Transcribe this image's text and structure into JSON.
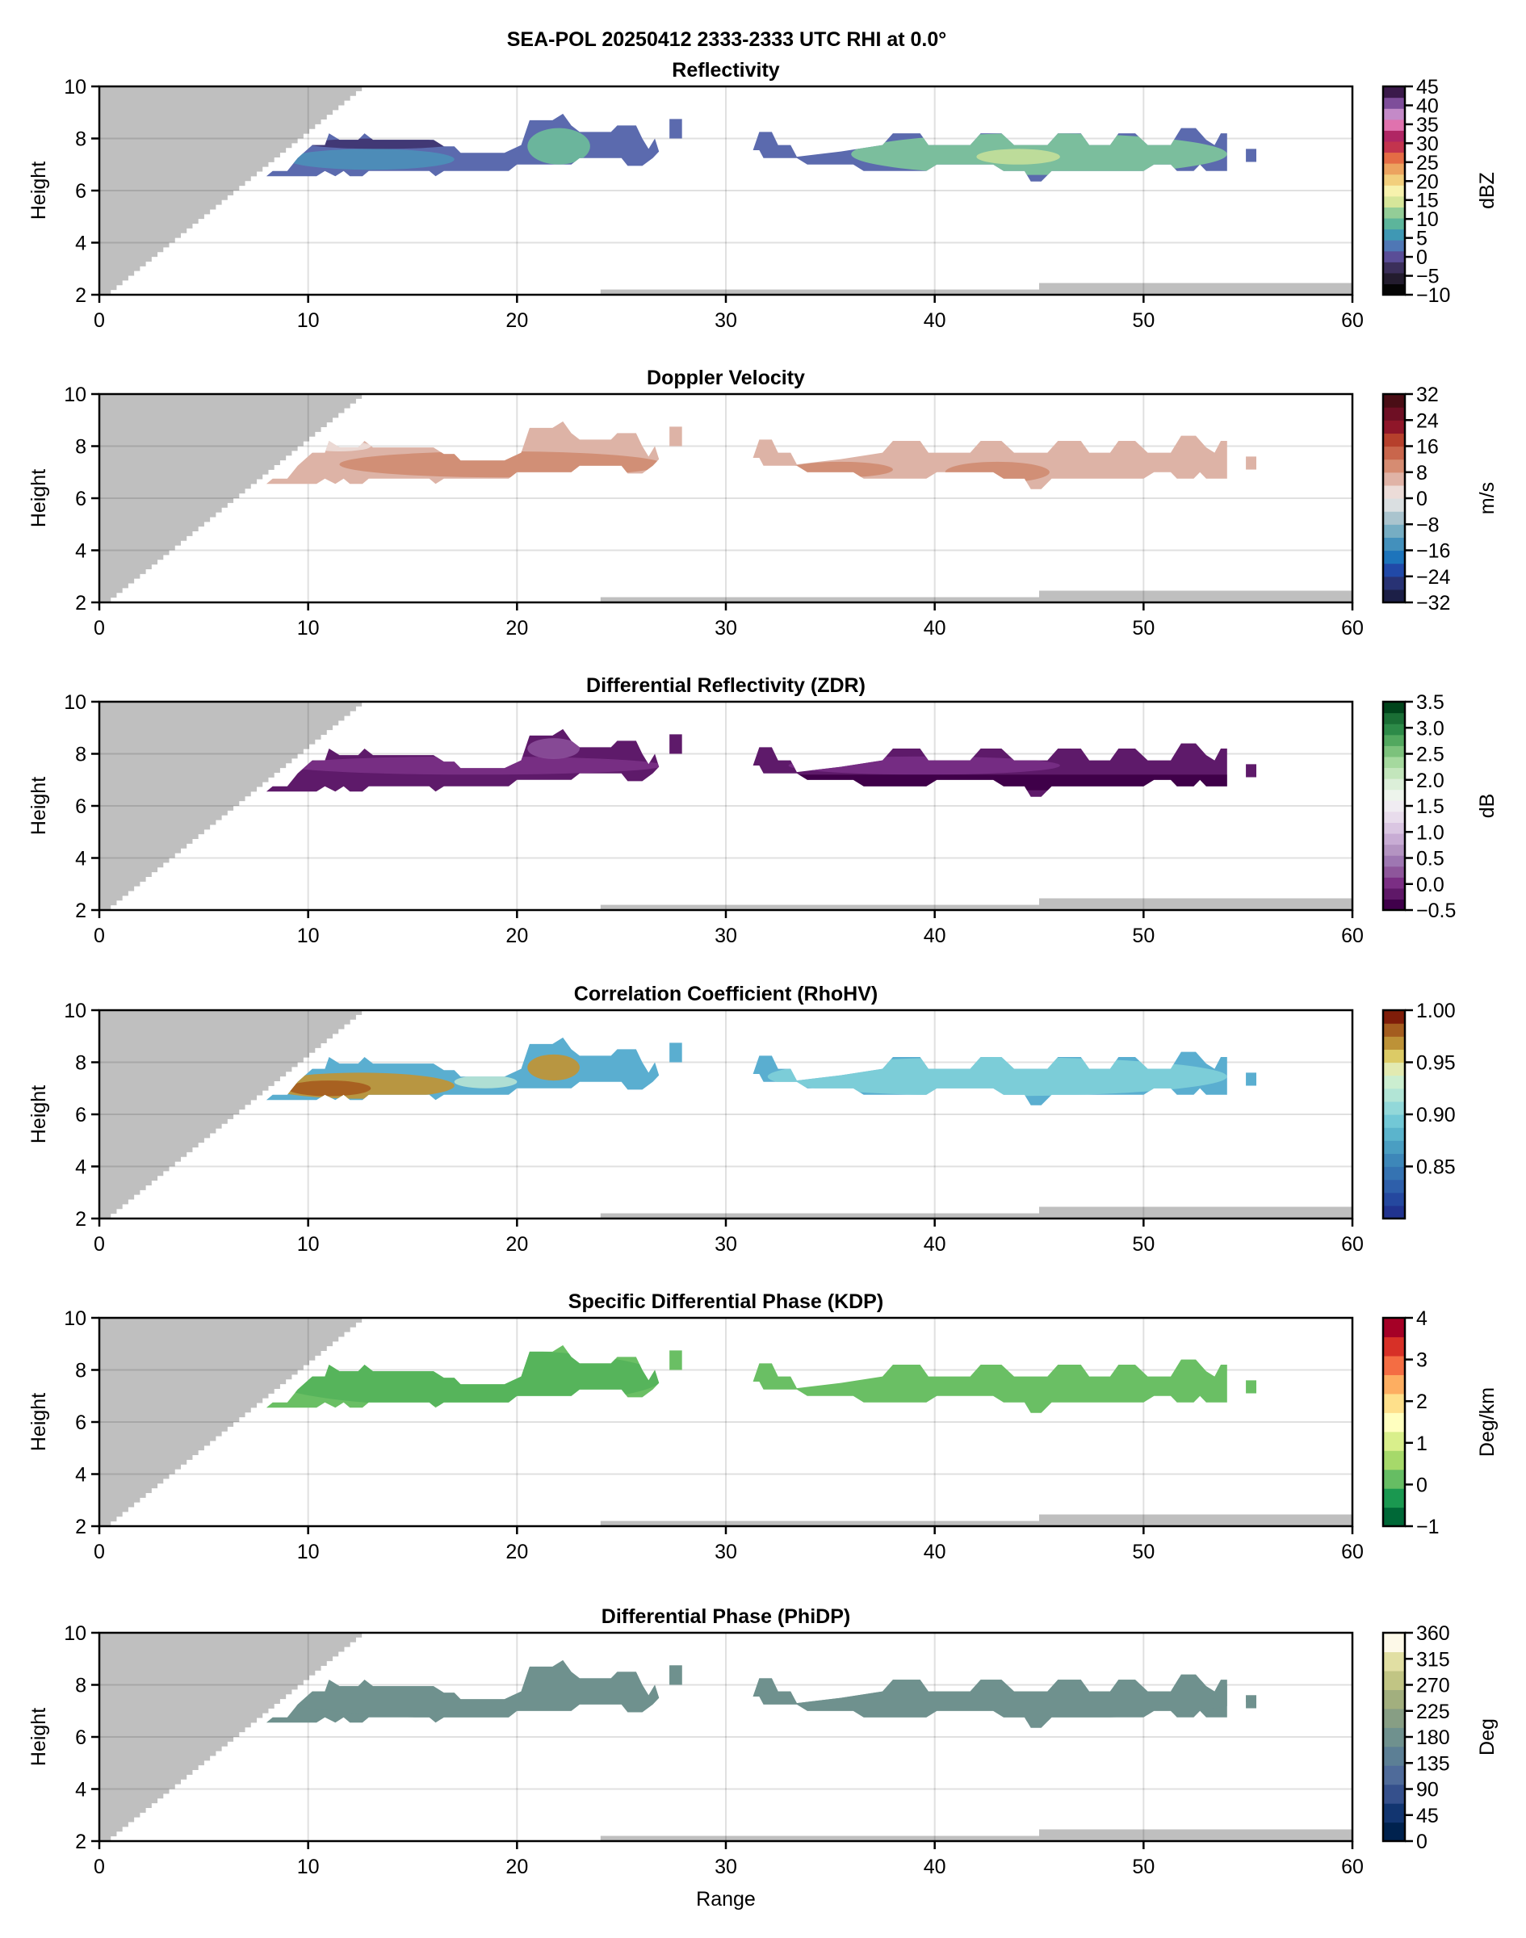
{
  "figure": {
    "suptitle": "SEA-POL 20250412 2333-2333 UTC RHI at 0.0°",
    "xlabel": "Range",
    "ylabel": "Height",
    "xlim": [
      0,
      60
    ],
    "ylim": [
      2,
      10
    ],
    "xticks": [
      0,
      10,
      20,
      30,
      40,
      50,
      60
    ],
    "yticks": [
      2,
      4,
      6,
      8,
      10
    ],
    "grid": true,
    "blocked_color": "#bfbfbf"
  },
  "chart_data": [
    {
      "type": "heatmap",
      "title": "Reflectivity",
      "xlabel": "",
      "ylabel": "Height",
      "colorbar": {
        "label": "dBZ",
        "range": [
          -10,
          45
        ],
        "ticks": [
          -10,
          -5,
          0,
          5,
          10,
          15,
          20,
          25,
          30,
          35,
          40,
          45
        ],
        "colors": [
          "#050505",
          "#231c2e",
          "#3b2f5a",
          "#5a4d97",
          "#4f77b5",
          "#3f98b4",
          "#5cb59b",
          "#93cd97",
          "#d6e69a",
          "#f7f2ad",
          "#f2cf7d",
          "#eca35f",
          "#e46c45",
          "#c3344e",
          "#b02664",
          "#e072ae",
          "#c48ac8",
          "#7e4d9a",
          "#3b1a4b"
        ]
      },
      "echo_fill": "#5b6aae",
      "features": [
        {
          "name": "core-low-range",
          "range_km": [
            9,
            17
          ],
          "height_km": [
            6.8,
            7.6
          ],
          "value": 5,
          "color": "#4c8fb8"
        },
        {
          "name": "core-21km",
          "range_km": [
            20.5,
            23.5
          ],
          "height_km": [
            7.0,
            8.4
          ],
          "value": 10,
          "color": "#6dbc9a"
        },
        {
          "name": "far-band",
          "range_km": [
            36,
            54
          ],
          "height_km": [
            6.6,
            8.2
          ],
          "value": 10,
          "color": "#7ec59b"
        },
        {
          "name": "far-peak",
          "range_km": [
            42,
            46
          ],
          "height_km": [
            7.0,
            7.6
          ],
          "value": 15,
          "color": "#c2de9a"
        },
        {
          "name": "top-edges",
          "range_km": [
            10,
            17
          ],
          "height_km": [
            7.6,
            8.0
          ],
          "value": -5,
          "color": "#3f3470"
        }
      ]
    },
    {
      "type": "heatmap",
      "title": "Doppler Velocity",
      "ylabel": "Height",
      "colorbar": {
        "label": "m/s",
        "range": [
          -32,
          32
        ],
        "ticks": [
          -32,
          -24,
          -16,
          -8,
          0,
          8,
          16,
          24,
          32
        ],
        "colors": [
          "#1c1f47",
          "#283274",
          "#2149a8",
          "#1d74bb",
          "#4390bc",
          "#76adc3",
          "#aac4ce",
          "#dadfe1",
          "#ecdcd8",
          "#e0b3a6",
          "#d68c72",
          "#c9664c",
          "#b6402c",
          "#8f1629",
          "#6e0f24",
          "#4a0d15"
        ]
      },
      "echo_fill": "#ddb3a6",
      "features": [
        {
          "name": "strong-receding-band",
          "range_km": [
            11.5,
            27
          ],
          "height_km": [
            6.8,
            7.8
          ],
          "value": 10,
          "color": "#cf8c72"
        },
        {
          "name": "mid-band",
          "range_km": [
            33,
            38
          ],
          "height_km": [
            6.8,
            7.4
          ],
          "value": 10,
          "color": "#cf8c72"
        },
        {
          "name": "far-band",
          "range_km": [
            40.5,
            45.5
          ],
          "height_km": [
            6.6,
            7.4
          ],
          "value": 10,
          "color": "#cf8c72"
        },
        {
          "name": "near-zero-top",
          "range_km": [
            10,
            13
          ],
          "height_km": [
            7.8,
            8.2
          ],
          "value": 2,
          "color": "#ecdcd8"
        }
      ]
    },
    {
      "type": "heatmap",
      "title": "Differential Reflectivity (ZDR)",
      "ylabel": "Height",
      "colorbar": {
        "label": "dB",
        "range": [
          -0.5,
          3.5
        ],
        "ticks": [
          -0.5,
          0.0,
          0.5,
          1.0,
          1.5,
          2.0,
          2.5,
          3.0,
          3.5
        ],
        "colors": [
          "#40004b",
          "#5f1868",
          "#7b2e84",
          "#8e569b",
          "#9e77b2",
          "#b494c2",
          "#c8acd4",
          "#dac6e2",
          "#e8dcec",
          "#f0ecf2",
          "#edf4ec",
          "#dcefd9",
          "#c3e6bc",
          "#a5d99e",
          "#7cc27c",
          "#52a85f",
          "#2d8a48",
          "#1a6e35",
          "#00441b"
        ]
      },
      "echo_fill": "#5e1a6a",
      "features": [
        {
          "name": "mid-layer",
          "range_km": [
            9,
            27
          ],
          "height_km": [
            7.2,
            7.9
          ],
          "value": 0.2,
          "color": "#7a3086"
        },
        {
          "name": "upper-21km",
          "range_km": [
            20.5,
            23
          ],
          "height_km": [
            7.8,
            8.6
          ],
          "value": 0.4,
          "color": "#8a4d99"
        },
        {
          "name": "far-upper",
          "range_km": [
            33,
            46
          ],
          "height_km": [
            7.2,
            7.9
          ],
          "value": 0.2,
          "color": "#772e86"
        },
        {
          "name": "far-lower-dark",
          "range_km": [
            32,
            54
          ],
          "height_km": [
            6.6,
            7.2
          ],
          "value": -0.3,
          "color": "#3f0049"
        }
      ]
    },
    {
      "type": "heatmap",
      "title": "Correlation Coefficient (RhoHV)",
      "ylabel": "Height",
      "colorbar": {
        "label": "",
        "range": [
          0.8,
          1.0
        ],
        "ticks": [
          0.85,
          0.9,
          0.95,
          1.0
        ],
        "colors": [
          "#21338f",
          "#25489f",
          "#2e5faa",
          "#3573b2",
          "#3d87b9",
          "#4a9ec2",
          "#5bb4cc",
          "#72c8d6",
          "#92d8d9",
          "#b2e5d6",
          "#cbeed0",
          "#e2eab1",
          "#dccb66",
          "#bd9237",
          "#a45d1f",
          "#7f1d09"
        ]
      },
      "echo_fill": "#5aaed0",
      "features": [
        {
          "name": "high-rho-low-range",
          "range_km": [
            8,
            17
          ],
          "height_km": [
            6.6,
            7.6
          ],
          "value": 0.98,
          "color": "#c09434"
        },
        {
          "name": "high-rho-peak",
          "range_km": [
            9,
            13
          ],
          "height_km": [
            6.7,
            7.3
          ],
          "value": 0.99,
          "color": "#a65c1e"
        },
        {
          "name": "high-rho-21km",
          "range_km": [
            20.5,
            23
          ],
          "height_km": [
            7.3,
            8.3
          ],
          "value": 0.98,
          "color": "#c09434"
        },
        {
          "name": "rim",
          "range_km": [
            17,
            20
          ],
          "height_km": [
            7.0,
            7.5
          ],
          "value": 0.94,
          "color": "#b6e3d4"
        },
        {
          "name": "far-band",
          "range_km": [
            32,
            54
          ],
          "height_km": [
            6.7,
            8.2
          ],
          "value": 0.92,
          "color": "#7fcfd8"
        }
      ]
    },
    {
      "type": "heatmap",
      "title": "Specific Differential Phase (KDP)",
      "ylabel": "Height",
      "colorbar": {
        "label": "Deg/km",
        "range": [
          -1,
          4
        ],
        "ticks": [
          -1,
          0,
          1,
          2,
          3,
          4
        ],
        "colors": [
          "#006837",
          "#1a9850",
          "#66bd63",
          "#a6d96a",
          "#d9ef8b",
          "#ffffbf",
          "#fee08b",
          "#fdae61",
          "#f46d43",
          "#d73027",
          "#a50026"
        ]
      },
      "echo_fill": "#6abf64",
      "features": [
        {
          "name": "slightly-negative-patches",
          "range_km": [
            8,
            27
          ],
          "height_km": [
            6.6,
            8.8
          ],
          "value": -0.2,
          "color": "#55b35a"
        }
      ]
    },
    {
      "type": "heatmap",
      "title": "Differential Phase (PhiDP)",
      "xlabel": "Range",
      "ylabel": "Height",
      "colorbar": {
        "label": "Deg",
        "range": [
          0,
          360
        ],
        "ticks": [
          0,
          45,
          90,
          135,
          180,
          225,
          270,
          315,
          360
        ],
        "colors": [
          "#00224e",
          "#123570",
          "#35508c",
          "#4f6b9a",
          "#5c7f95",
          "#6f918e",
          "#879e84",
          "#a2af7e",
          "#c1c584",
          "#e1dfa3",
          "#fdf9e8"
        ]
      },
      "echo_fill": "#6f918e",
      "features": [
        {
          "name": "uniform-phidp",
          "range_km": [
            8,
            55.5
          ],
          "height_km": [
            6.4,
            8.8
          ],
          "value": 185,
          "color": "#6f918e"
        }
      ]
    }
  ],
  "echo": {
    "outline_km": [
      [
        8.0,
        6.55
      ],
      [
        8.3,
        6.75
      ],
      [
        9.0,
        6.75
      ],
      [
        9.5,
        7.25
      ],
      [
        10.2,
        7.75
      ],
      [
        10.8,
        7.75
      ],
      [
        11.0,
        8.2
      ],
      [
        11.5,
        7.95
      ],
      [
        12.4,
        7.95
      ],
      [
        12.7,
        8.2
      ],
      [
        13.1,
        7.95
      ],
      [
        16.0,
        7.95
      ],
      [
        16.5,
        7.7
      ],
      [
        17.0,
        7.7
      ],
      [
        17.3,
        7.45
      ],
      [
        19.4,
        7.45
      ],
      [
        20.2,
        7.75
      ],
      [
        20.6,
        8.7
      ],
      [
        21.7,
        8.7
      ],
      [
        22.2,
        8.95
      ],
      [
        22.6,
        8.5
      ],
      [
        23.0,
        8.25
      ],
      [
        24.5,
        8.25
      ],
      [
        24.8,
        8.5
      ],
      [
        25.7,
        8.5
      ],
      [
        26.0,
        8.0
      ],
      [
        26.3,
        7.6
      ],
      [
        26.6,
        8.0
      ],
      [
        26.8,
        7.5
      ],
      [
        26.5,
        7.25
      ],
      [
        26.0,
        6.95
      ],
      [
        25.3,
        6.95
      ],
      [
        25.0,
        7.25
      ],
      [
        23.0,
        7.25
      ],
      [
        22.6,
        7.0
      ],
      [
        20.0,
        7.0
      ],
      [
        19.6,
        6.75
      ],
      [
        16.5,
        6.75
      ],
      [
        16.1,
        6.55
      ],
      [
        15.8,
        6.75
      ],
      [
        12.9,
        6.75
      ],
      [
        12.6,
        6.55
      ],
      [
        12.0,
        6.55
      ],
      [
        11.7,
        6.75
      ],
      [
        11.3,
        6.55
      ],
      [
        10.8,
        6.75
      ],
      [
        10.4,
        6.55
      ]
    ],
    "outline2_km": [
      [
        30.8,
        7.55
      ],
      [
        31.3,
        7.55
      ],
      [
        31.6,
        8.25
      ],
      [
        32.2,
        8.25
      ],
      [
        32.5,
        7.75
      ],
      [
        33.1,
        7.75
      ],
      [
        33.4,
        7.3
      ],
      [
        35.5,
        7.5
      ],
      [
        37.5,
        7.75
      ],
      [
        38.0,
        8.2
      ],
      [
        39.3,
        8.2
      ],
      [
        39.7,
        7.75
      ],
      [
        41.7,
        7.75
      ],
      [
        42.2,
        8.2
      ],
      [
        43.2,
        8.2
      ],
      [
        43.8,
        7.75
      ],
      [
        45.4,
        7.75
      ],
      [
        45.9,
        8.2
      ],
      [
        47.0,
        8.2
      ],
      [
        47.4,
        7.75
      ],
      [
        48.4,
        7.75
      ],
      [
        48.8,
        8.2
      ],
      [
        49.6,
        8.2
      ],
      [
        50.2,
        7.75
      ],
      [
        51.3,
        7.75
      ],
      [
        51.8,
        8.4
      ],
      [
        52.5,
        8.4
      ],
      [
        53.0,
        7.95
      ],
      [
        53.4,
        7.75
      ],
      [
        53.7,
        8.2
      ],
      [
        54.0,
        8.2
      ],
      [
        54.0,
        6.75
      ],
      [
        53.0,
        6.75
      ],
      [
        52.7,
        7.0
      ],
      [
        52.4,
        6.75
      ],
      [
        51.6,
        6.75
      ],
      [
        51.3,
        7.0
      ],
      [
        50.5,
        7.0
      ],
      [
        50.0,
        6.75
      ],
      [
        45.6,
        6.75
      ],
      [
        45.1,
        6.35
      ],
      [
        44.6,
        6.35
      ],
      [
        44.3,
        6.75
      ],
      [
        43.3,
        6.75
      ],
      [
        42.8,
        7.0
      ],
      [
        40.1,
        7.0
      ],
      [
        39.6,
        6.75
      ],
      [
        36.6,
        6.75
      ],
      [
        36.1,
        7.0
      ],
      [
        33.9,
        7.0
      ],
      [
        33.4,
        7.25
      ],
      [
        31.8,
        7.25
      ],
      [
        31.6,
        7.55
      ],
      [
        31.0,
        7.55
      ],
      [
        30.8,
        7.55
      ]
    ],
    "isolated_cells_km": [
      {
        "range": [
          27.3,
          27.9
        ],
        "height": [
          8.0,
          8.75
        ]
      },
      {
        "range": [
          54.9,
          55.4
        ],
        "height": [
          7.1,
          7.6
        ]
      }
    ]
  },
  "blocked": {
    "beam_blockage_wedge": "terrain/beam blockage from 0 to ~12.8 km range, upper-left",
    "surface_bars": [
      {
        "range": [
          24,
          45
        ],
        "top_height": 2.2
      },
      {
        "range": [
          45,
          60
        ],
        "top_height": 2.45
      }
    ]
  }
}
